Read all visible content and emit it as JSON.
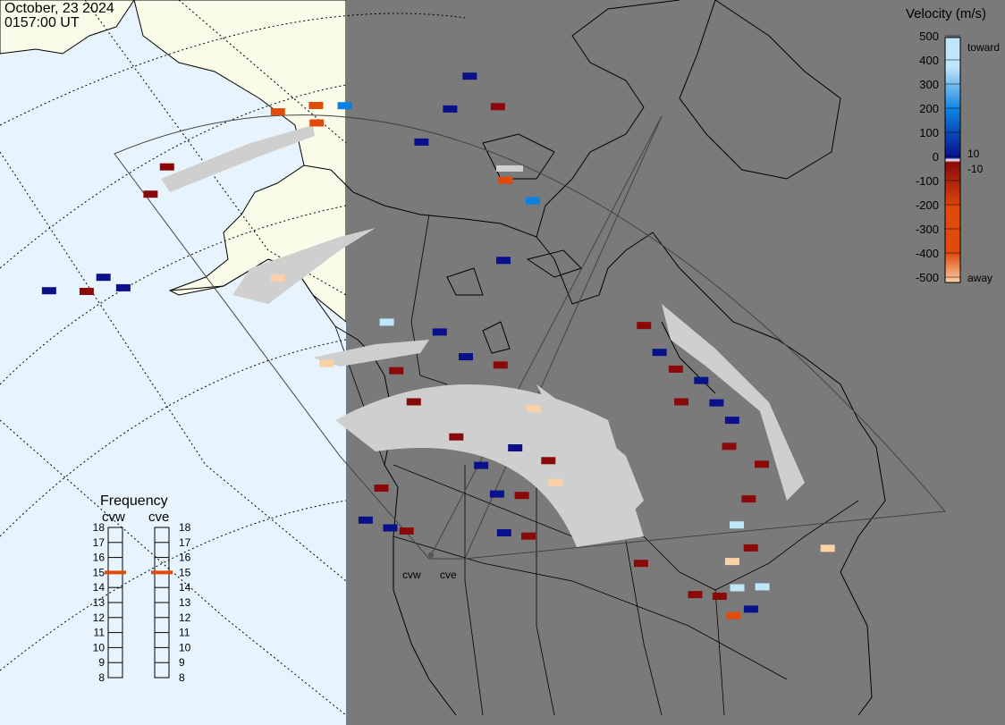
{
  "header": {
    "date": "October, 23 2024",
    "time": "0157:00 UT"
  },
  "colors": {
    "ocean": "#e8f4fd",
    "land_daylight": "#fafbe8",
    "night": "#7a7a7a",
    "no_data_grey": "#cfcfcf",
    "toward_light": "#bfe6fb",
    "toward_mid": "#0a80e0",
    "toward_dark": "#0a0f8a",
    "away_dark": "#8a0a0a",
    "away_mid": "#e04a0a",
    "away_light": "#fbd1a8",
    "frequency_marker": "#e04a0a"
  },
  "velocity_scale": {
    "title": "Velocity (m/s)",
    "ticks": [
      "500",
      "400",
      "300",
      "200",
      "100",
      "0",
      "-100",
      "-200",
      "-300",
      "-400",
      "-500"
    ],
    "threshold_labels": [
      "10",
      "-10"
    ],
    "toward_label": "toward",
    "away_label": "away"
  },
  "frequency": {
    "title": "Frequency",
    "radars": [
      {
        "name": "cvw",
        "selected_mhz": 15
      },
      {
        "name": "cve",
        "selected_mhz": 15
      }
    ],
    "ticks": [
      "18",
      "17",
      "16",
      "15",
      "14",
      "13",
      "12",
      "11",
      "10",
      "9",
      "8"
    ]
  },
  "map": {
    "radar_site_labels": [
      "cvw",
      "cve"
    ],
    "velocity_cells": [
      {
        "lon": -168,
        "lat": 65.5,
        "v": "away_light"
      },
      {
        "lon": -164,
        "lat": 66.4,
        "v": "toward_dark"
      },
      {
        "lon": -160,
        "lat": 66.6,
        "v": "away_light"
      },
      {
        "lon": -166,
        "lat": 64.4,
        "v": "away_dark"
      },
      {
        "lon": -163,
        "lat": 64.9,
        "v": "toward_dark"
      },
      {
        "lon": -162,
        "lat": 63.8,
        "v": "toward_light"
      },
      {
        "lon": -170,
        "lat": 62.8,
        "v": "toward_dark"
      },
      {
        "lon": -167,
        "lat": 63.1,
        "v": "toward_dark"
      },
      {
        "lon": -128,
        "lat": 70.8,
        "v": "away_mid"
      },
      {
        "lon": -124,
        "lat": 71.0,
        "v": "away_mid"
      },
      {
        "lon": -124,
        "lat": 70.0,
        "v": "away_mid"
      },
      {
        "lon": -121,
        "lat": 70.9,
        "v": "toward_mid"
      },
      {
        "lon": -140,
        "lat": 68.4,
        "v": "away_dark"
      },
      {
        "lon": -142,
        "lat": 67.0,
        "v": "away_dark"
      },
      {
        "lon": -154,
        "lat": 62.7,
        "v": "toward_dark"
      },
      {
        "lon": -150,
        "lat": 62.2,
        "v": "away_dark"
      },
      {
        "lon": -148,
        "lat": 62.8,
        "v": "toward_dark"
      },
      {
        "lon": -146,
        "lat": 62.0,
        "v": "toward_dark"
      },
      {
        "lon": -108,
        "lat": 72.5,
        "v": "toward_dark"
      },
      {
        "lon": -110,
        "lat": 70.6,
        "v": "toward_dark"
      },
      {
        "lon": -105,
        "lat": 70.8,
        "v": "away_dark"
      },
      {
        "lon": -113,
        "lat": 68.7,
        "v": "toward_dark"
      },
      {
        "lon": -104,
        "lat": 66.6,
        "v": "away_mid"
      },
      {
        "lon": -101,
        "lat": 65.5,
        "v": "toward_mid"
      },
      {
        "lon": -104,
        "lat": 62.0,
        "v": "toward_dark"
      },
      {
        "lon": -129,
        "lat": 61.3,
        "v": "away_light"
      },
      {
        "lon": -88,
        "lat": 59.0,
        "v": "away_dark"
      },
      {
        "lon": -86,
        "lat": 57.6,
        "v": "toward_dark"
      },
      {
        "lon": -84,
        "lat": 56.8,
        "v": "away_dark"
      },
      {
        "lon": -83,
        "lat": 55.0,
        "v": "away_dark"
      },
      {
        "lon": -81,
        "lat": 56.4,
        "v": "toward_dark"
      },
      {
        "lon": -79,
        "lat": 55.3,
        "v": "toward_dark"
      },
      {
        "lon": -77,
        "lat": 54.5,
        "v": "toward_dark"
      },
      {
        "lon": -77,
        "lat": 53.0,
        "v": "away_dark"
      },
      {
        "lon": -73,
        "lat": 52.4,
        "v": "away_dark"
      },
      {
        "lon": -74,
        "lat": 50.3,
        "v": "away_dark"
      },
      {
        "lon": -75,
        "lat": 48.7,
        "v": "toward_light"
      },
      {
        "lon": -73,
        "lat": 47.6,
        "v": "away_dark"
      },
      {
        "lon": -75,
        "lat": 46.6,
        "v": "away_light"
      },
      {
        "lon": -74,
        "lat": 45.2,
        "v": "toward_light"
      },
      {
        "lon": -76,
        "lat": 44.5,
        "v": "away_dark"
      },
      {
        "lon": -74,
        "lat": 43.6,
        "v": "away_mid"
      },
      {
        "lon": -72,
        "lat": 44.2,
        "v": "toward_dark"
      },
      {
        "lon": -71,
        "lat": 45.6,
        "v": "toward_light"
      },
      {
        "lon": -79,
        "lat": 44.3,
        "v": "away_dark"
      },
      {
        "lon": -86,
        "lat": 45.5,
        "v": "away_dark"
      },
      {
        "lon": -64,
        "lat": 48.7,
        "v": "away_light"
      },
      {
        "lon": -117,
        "lat": 58.4,
        "v": "toward_light"
      },
      {
        "lon": -111,
        "lat": 57.8,
        "v": "toward_dark"
      },
      {
        "lon": -108,
        "lat": 56.4,
        "v": "toward_dark"
      },
      {
        "lon": -104,
        "lat": 56.0,
        "v": "away_dark"
      },
      {
        "lon": -116,
        "lat": 55.6,
        "v": "away_dark"
      },
      {
        "lon": -114,
        "lat": 53.8,
        "v": "away_dark"
      },
      {
        "lon": -124,
        "lat": 56.2,
        "v": "away_light"
      },
      {
        "lon": -100,
        "lat": 53.6,
        "v": "away_light"
      },
      {
        "lon": -102,
        "lat": 51.3,
        "v": "toward_dark"
      },
      {
        "lon": -98,
        "lat": 50.7,
        "v": "away_dark"
      },
      {
        "lon": -97,
        "lat": 49.5,
        "v": "away_light"
      },
      {
        "lon": -101,
        "lat": 48.6,
        "v": "away_dark"
      },
      {
        "lon": -104,
        "lat": 48.6,
        "v": "toward_dark"
      },
      {
        "lon": -109,
        "lat": 51.8,
        "v": "away_dark"
      },
      {
        "lon": -106,
        "lat": 50.2,
        "v": "toward_dark"
      },
      {
        "lon": -118,
        "lat": 48.9,
        "v": "away_dark"
      },
      {
        "lon": -103,
        "lat": 46.4,
        "v": "toward_dark"
      },
      {
        "lon": -120,
        "lat": 47.1,
        "v": "toward_dark"
      },
      {
        "lon": -117,
        "lat": 46.6,
        "v": "toward_dark"
      },
      {
        "lon": -115,
        "lat": 46.4,
        "v": "away_dark"
      },
      {
        "lon": -100,
        "lat": 46.3,
        "v": "away_dark"
      }
    ]
  }
}
